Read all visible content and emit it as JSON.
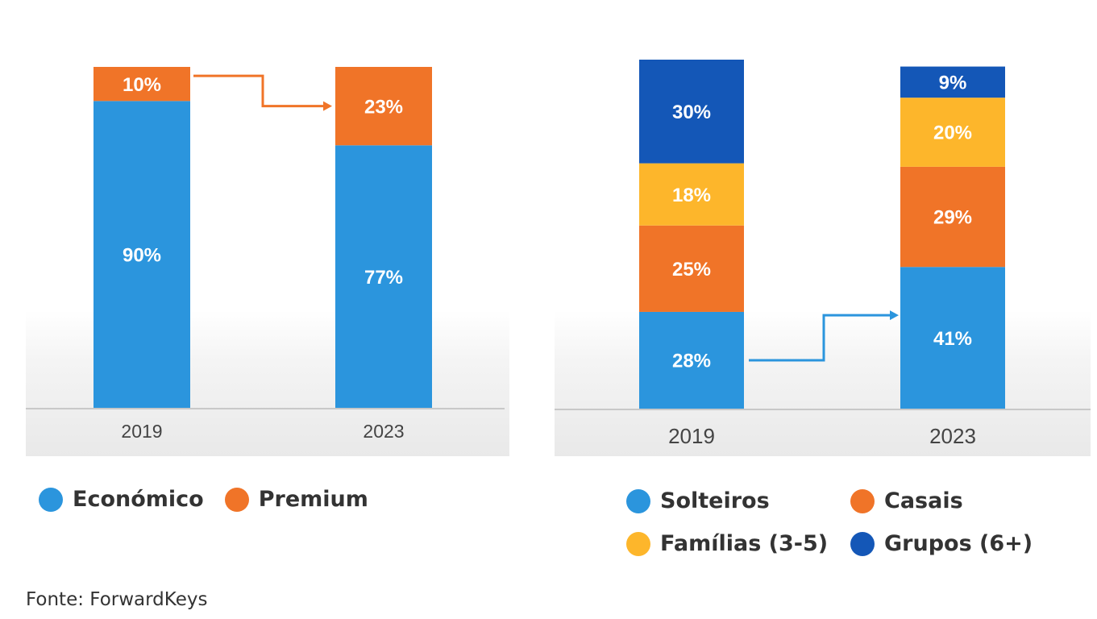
{
  "colors": {
    "economico": "#2b95dd",
    "premium": "#f07428",
    "solteiros": "#2b95dd",
    "casais": "#f07428",
    "familias": "#fdb62b",
    "grupos": "#1457b7"
  },
  "chart_data": [
    {
      "type": "bar",
      "stacked": true,
      "title": "",
      "xlabel": "",
      "ylabel": "",
      "categories": [
        "2019",
        "2023"
      ],
      "series": [
        {
          "name": "Económico",
          "values": [
            90,
            77
          ],
          "labels": [
            "90%",
            "77%"
          ],
          "color": "#2b95dd"
        },
        {
          "name": "Premium",
          "values": [
            10,
            23
          ],
          "labels": [
            "10%",
            "23%"
          ],
          "color": "#f07428"
        }
      ],
      "ylim": [
        0,
        100
      ],
      "legend_position": "bottom-left",
      "grid": false
    },
    {
      "type": "bar",
      "stacked": true,
      "title": "",
      "xlabel": "",
      "ylabel": "",
      "categories": [
        "2019",
        "2023"
      ],
      "series": [
        {
          "name": "Solteiros",
          "values": [
            28,
            41
          ],
          "labels": [
            "28%",
            "41%"
          ],
          "color": "#2b95dd"
        },
        {
          "name": "Casais",
          "values": [
            25,
            29
          ],
          "labels": [
            "25%",
            "29%"
          ],
          "color": "#f07428"
        },
        {
          "name": "Famílias (3-5)",
          "values": [
            18,
            20
          ],
          "labels": [
            "18%",
            "20%"
          ],
          "color": "#fdb62b"
        },
        {
          "name": "Grupos (6+)",
          "values": [
            30,
            9
          ],
          "labels": [
            "30%",
            "9%"
          ],
          "color": "#1457b7"
        }
      ],
      "ylim": [
        0,
        101
      ],
      "legend_position": "bottom",
      "grid": false
    }
  ],
  "legend_left": [
    {
      "label": "Económico",
      "color": "#2b95dd"
    },
    {
      "label": "Premium",
      "color": "#f07428"
    }
  ],
  "legend_right": [
    {
      "label": "Solteiros",
      "color": "#2b95dd"
    },
    {
      "label": "Casais",
      "color": "#f07428"
    },
    {
      "label": "Famílias (3-5)",
      "color": "#fdb62b"
    },
    {
      "label": "Grupos (6+)",
      "color": "#1457b7"
    }
  ],
  "source": "Fonte: ForwardKeys"
}
